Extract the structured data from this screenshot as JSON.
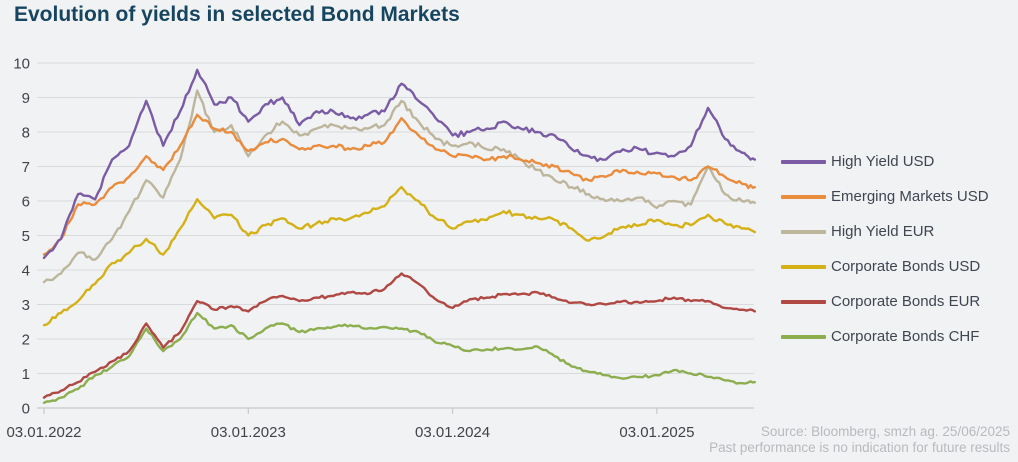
{
  "header": {
    "title": "Evolution of yields in selected Bond Markets"
  },
  "footer": {
    "source_line": "Source: Bloomberg, smzh ag. 25/06/2025",
    "disclaimer_line": "Past performance is no indication for future results"
  },
  "colors": {
    "background": "#F1F2F4",
    "title": "#16455F",
    "axis_text": "#404449",
    "gridline": "#D9DADC",
    "axis_line": "#C7C8CA",
    "legend_text": "#3F4651",
    "muted_text": "#B7BABE"
  },
  "chart_data": {
    "type": "line",
    "title": "Evolution of yields in selected Bond Markets",
    "xlabel": "",
    "ylabel": "",
    "ylim": [
      0,
      10
    ],
    "grid": "horizontal",
    "legend_position": "right",
    "y_ticks": [
      0,
      1,
      2,
      3,
      4,
      5,
      6,
      7,
      8,
      9,
      10
    ],
    "x_tick_labels": [
      "03.01.2022",
      "03.01.2023",
      "03.01.2024",
      "03.01.2025"
    ],
    "x_unit": "months since 03.01.2022",
    "x_months": [
      0,
      1,
      2,
      3,
      4,
      5,
      6,
      7,
      8,
      9,
      10,
      11,
      12,
      13,
      14,
      15,
      16,
      17,
      18,
      19,
      20,
      21,
      22,
      23,
      24,
      25,
      26,
      27,
      28,
      29,
      30,
      31,
      32,
      33,
      34,
      35,
      36,
      37,
      38,
      39,
      40,
      41,
      41.75
    ],
    "series": [
      {
        "name": "High Yield USD",
        "color": "#7A5CA5",
        "values": [
          4.35,
          4.9,
          6.2,
          6.05,
          7.2,
          7.6,
          8.9,
          7.6,
          8.6,
          9.8,
          8.8,
          9.0,
          8.3,
          8.8,
          9.0,
          8.2,
          8.6,
          8.6,
          8.4,
          8.5,
          8.6,
          9.4,
          8.9,
          8.4,
          7.9,
          8.0,
          8.1,
          8.3,
          8.1,
          8.0,
          7.9,
          7.5,
          7.3,
          7.2,
          7.5,
          7.5,
          7.4,
          7.3,
          7.6,
          8.7,
          7.8,
          7.4,
          7.2
        ]
      },
      {
        "name": "Emerging Markets USD",
        "color": "#E98C3D",
        "values": [
          4.45,
          4.9,
          5.9,
          5.9,
          6.4,
          6.7,
          7.3,
          6.9,
          7.6,
          8.5,
          8.1,
          8.0,
          7.45,
          7.7,
          7.8,
          7.5,
          7.6,
          7.6,
          7.5,
          7.6,
          7.7,
          8.4,
          7.9,
          7.5,
          7.3,
          7.3,
          7.2,
          7.3,
          7.2,
          7.1,
          7.0,
          6.8,
          6.6,
          6.7,
          6.9,
          6.8,
          6.8,
          6.7,
          6.6,
          7.0,
          6.7,
          6.5,
          6.4
        ]
      },
      {
        "name": "High Yield EUR",
        "color": "#BDB69C",
        "values": [
          3.65,
          3.9,
          4.5,
          4.3,
          4.9,
          5.7,
          6.6,
          6.1,
          7.2,
          9.2,
          8.0,
          8.2,
          7.3,
          7.9,
          8.3,
          7.9,
          8.1,
          8.2,
          8.1,
          8.1,
          8.2,
          8.9,
          8.3,
          7.8,
          7.6,
          7.7,
          7.5,
          7.5,
          7.2,
          6.9,
          6.6,
          6.4,
          6.2,
          6.0,
          6.0,
          6.1,
          5.8,
          6.0,
          5.9,
          7.0,
          6.2,
          6.0,
          5.95
        ]
      },
      {
        "name": "Corporate Bonds USD",
        "color": "#D4B117",
        "values": [
          2.4,
          2.75,
          3.1,
          3.6,
          4.2,
          4.5,
          4.9,
          4.45,
          5.2,
          6.05,
          5.5,
          5.6,
          5.0,
          5.3,
          5.5,
          5.2,
          5.35,
          5.5,
          5.5,
          5.65,
          5.85,
          6.4,
          6.0,
          5.5,
          5.2,
          5.4,
          5.45,
          5.7,
          5.6,
          5.5,
          5.45,
          5.2,
          4.85,
          5.0,
          5.25,
          5.3,
          5.45,
          5.3,
          5.3,
          5.6,
          5.35,
          5.2,
          5.1
        ]
      },
      {
        "name": "Corporate Bonds EUR",
        "color": "#B04843",
        "values": [
          0.3,
          0.5,
          0.75,
          1.05,
          1.35,
          1.65,
          2.45,
          1.75,
          2.2,
          3.1,
          2.85,
          2.95,
          2.8,
          3.1,
          3.25,
          3.1,
          3.2,
          3.25,
          3.35,
          3.3,
          3.45,
          3.9,
          3.6,
          3.15,
          2.9,
          3.15,
          3.2,
          3.3,
          3.3,
          3.35,
          3.2,
          3.05,
          3.0,
          3.0,
          3.1,
          3.05,
          3.1,
          3.2,
          3.1,
          3.1,
          2.9,
          2.85,
          2.8
        ]
      },
      {
        "name": "Corporate Bonds CHF",
        "color": "#8CAE4E",
        "values": [
          0.15,
          0.3,
          0.55,
          0.95,
          1.2,
          1.5,
          2.3,
          1.65,
          2.0,
          2.75,
          2.3,
          2.4,
          2.0,
          2.3,
          2.45,
          2.2,
          2.3,
          2.35,
          2.4,
          2.3,
          2.35,
          2.3,
          2.2,
          1.9,
          1.8,
          1.65,
          1.7,
          1.72,
          1.7,
          1.78,
          1.5,
          1.2,
          1.05,
          0.95,
          0.85,
          0.9,
          0.95,
          1.1,
          1.0,
          0.9,
          0.8,
          0.72,
          0.75
        ]
      }
    ]
  }
}
